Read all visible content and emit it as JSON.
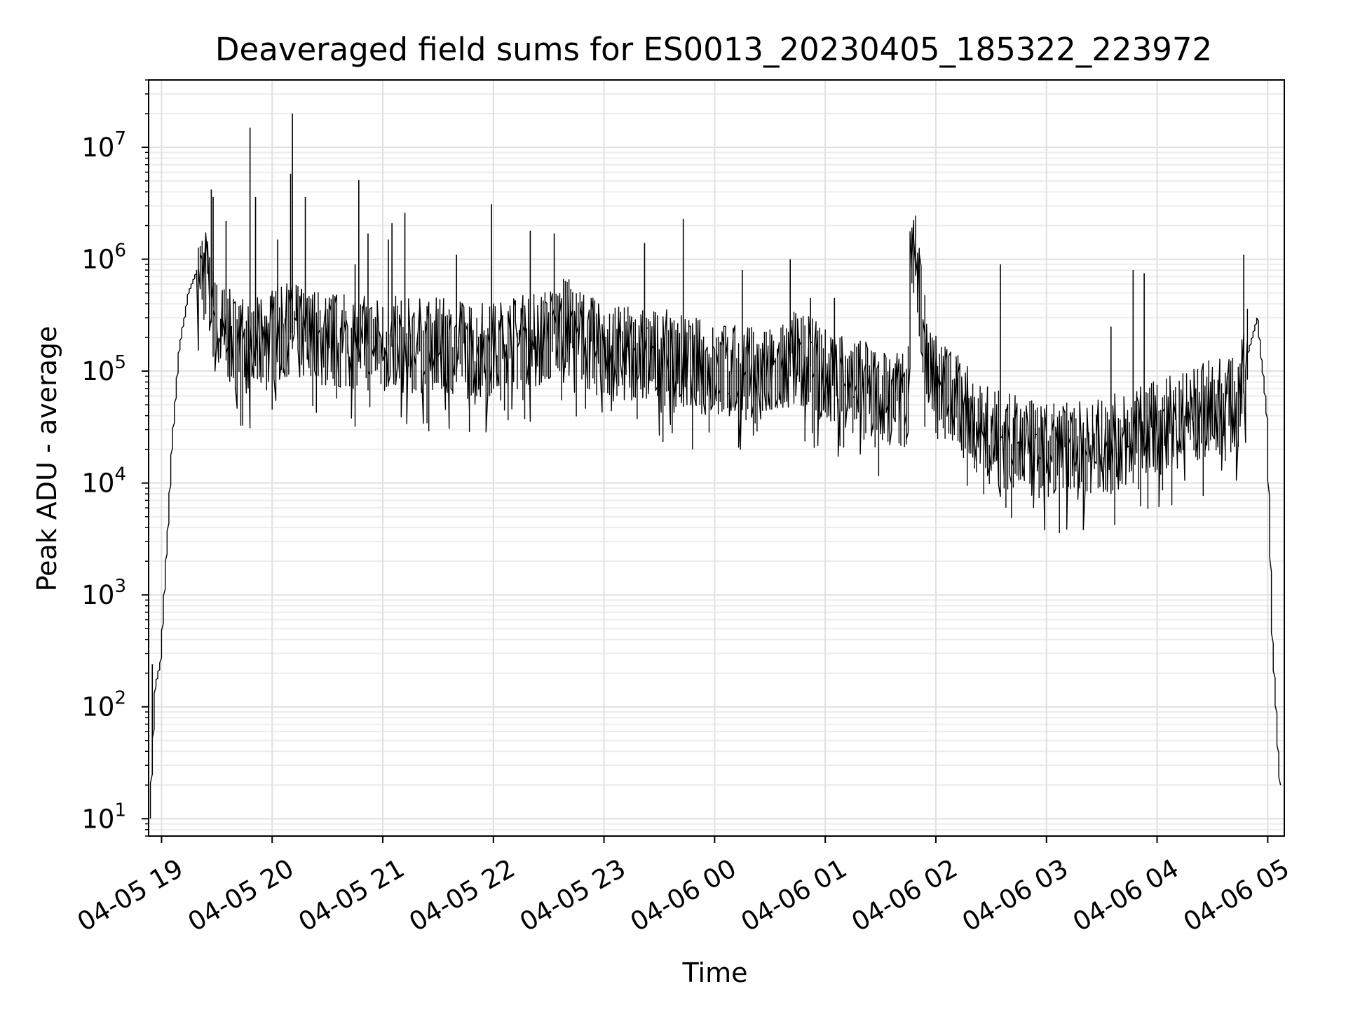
{
  "chart_data": {
    "type": "line",
    "title": "Deaveraged field sums for ES0013_20230405_185322_223972",
    "xlabel": "Time",
    "ylabel": "Peak ADU - average",
    "yscale": "log",
    "ylim": [
      7,
      40000000
    ],
    "xlim": [
      "2023-04-05 18:53",
      "2023-04-06 05:09"
    ],
    "grid": true,
    "grid_minor": true,
    "line_color": "#000000",
    "x_ticks": [
      {
        "value": "2023-04-05 19:00",
        "label": "04-05 19"
      },
      {
        "value": "2023-04-05 20:00",
        "label": "04-05 20"
      },
      {
        "value": "2023-04-05 21:00",
        "label": "04-05 21"
      },
      {
        "value": "2023-04-05 22:00",
        "label": "04-05 22"
      },
      {
        "value": "2023-04-05 23:00",
        "label": "04-05 23"
      },
      {
        "value": "2023-04-06 00:00",
        "label": "04-06 00"
      },
      {
        "value": "2023-04-06 01:00",
        "label": "04-06 01"
      },
      {
        "value": "2023-04-06 02:00",
        "label": "04-06 02"
      },
      {
        "value": "2023-04-06 03:00",
        "label": "04-06 03"
      },
      {
        "value": "2023-04-06 04:00",
        "label": "04-06 04"
      },
      {
        "value": "2023-04-06 05:00",
        "label": "04-06 05"
      }
    ],
    "y_ticks": [
      {
        "value": 10,
        "base": "10",
        "exp": "1"
      },
      {
        "value": 100,
        "base": "10",
        "exp": "2"
      },
      {
        "value": 1000,
        "base": "10",
        "exp": "3"
      },
      {
        "value": 10000,
        "base": "10",
        "exp": "4"
      },
      {
        "value": 100000,
        "base": "10",
        "exp": "5"
      },
      {
        "value": 1000000,
        "base": "10",
        "exp": "6"
      },
      {
        "value": 10000000,
        "base": "10",
        "exp": "7"
      }
    ],
    "series": [
      {
        "x": [
          "2023-04-05 18:54",
          "2023-04-05 18:57",
          "2023-04-05 19:00",
          "2023-04-05 19:03",
          "2023-04-05 19:06",
          "2023-04-05 19:10",
          "2023-04-05 19:15",
          "2023-04-05 19:20",
          "2023-04-05 19:25",
          "2023-04-05 19:30",
          "2023-04-05 19:40",
          "2023-04-05 19:50",
          "2023-04-05 20:00",
          "2023-04-05 20:10",
          "2023-04-05 20:30",
          "2023-04-05 21:00",
          "2023-04-05 21:30",
          "2023-04-05 22:00",
          "2023-04-05 22:30",
          "2023-04-05 22:40",
          "2023-04-05 23:00",
          "2023-04-05 23:30",
          "2023-04-06 00:00",
          "2023-04-06 00:30",
          "2023-04-06 00:45",
          "2023-04-06 01:00",
          "2023-04-06 01:30",
          "2023-04-06 01:45",
          "2023-04-06 01:48",
          "2023-04-06 01:50",
          "2023-04-06 01:55",
          "2023-04-06 02:00",
          "2023-04-06 02:30",
          "2023-04-06 03:00",
          "2023-04-06 03:30",
          "2023-04-06 04:00",
          "2023-04-06 04:30",
          "2023-04-06 04:45",
          "2023-04-06 04:50",
          "2023-04-06 04:55",
          "2023-04-06 05:00",
          "2023-04-06 05:03",
          "2023-04-06 05:05",
          "2023-04-06 05:07"
        ],
        "y": [
          10,
          150,
          250,
          2000,
          20000,
          150000,
          500000,
          800000,
          700000,
          250000,
          180000,
          150000,
          200000,
          220000,
          190000,
          170000,
          160000,
          150000,
          200000,
          250000,
          140000,
          130000,
          100000,
          85000,
          130000,
          90000,
          60000,
          50000,
          2600000,
          800000,
          150000,
          80000,
          25000,
          18000,
          20000,
          30000,
          45000,
          50000,
          150000,
          300000,
          40000,
          400,
          100,
          20
        ]
      }
    ],
    "spikes": [
      {
        "x": "2023-04-05 19:27",
        "y": 4200000
      },
      {
        "x": "2023-04-05 19:28",
        "y": 3600000
      },
      {
        "x": "2023-04-05 19:35",
        "y": 2200000
      },
      {
        "x": "2023-04-05 19:48",
        "y": 15000000
      },
      {
        "x": "2023-04-05 19:51",
        "y": 3600000
      },
      {
        "x": "2023-04-05 20:03",
        "y": 1500000
      },
      {
        "x": "2023-04-05 20:10",
        "y": 5800000
      },
      {
        "x": "2023-04-05 20:11",
        "y": 20000000
      },
      {
        "x": "2023-04-05 20:18",
        "y": 3600000
      },
      {
        "x": "2023-04-05 20:45",
        "y": 900000
      },
      {
        "x": "2023-04-05 20:47",
        "y": 5100000
      },
      {
        "x": "2023-04-05 20:52",
        "y": 1700000
      },
      {
        "x": "2023-04-05 21:03",
        "y": 1500000
      },
      {
        "x": "2023-04-05 21:05",
        "y": 2100000
      },
      {
        "x": "2023-04-05 21:12",
        "y": 2600000
      },
      {
        "x": "2023-04-05 21:40",
        "y": 1100000
      },
      {
        "x": "2023-04-05 21:59",
        "y": 3100000
      },
      {
        "x": "2023-04-05 22:20",
        "y": 1800000
      },
      {
        "x": "2023-04-05 22:33",
        "y": 1700000
      },
      {
        "x": "2023-04-05 23:22",
        "y": 1400000
      },
      {
        "x": "2023-04-05 23:43",
        "y": 2300000
      },
      {
        "x": "2023-04-06 00:15",
        "y": 800000
      },
      {
        "x": "2023-04-06 00:41",
        "y": 1000000
      },
      {
        "x": "2023-04-06 00:52",
        "y": 450000
      },
      {
        "x": "2023-04-06 01:05",
        "y": 450000
      },
      {
        "x": "2023-04-06 02:35",
        "y": 900000
      },
      {
        "x": "2023-04-06 03:35",
        "y": 250000
      },
      {
        "x": "2023-04-06 03:47",
        "y": 800000
      },
      {
        "x": "2023-04-06 03:53",
        "y": 750000
      },
      {
        "x": "2023-04-06 04:47",
        "y": 1100000
      },
      {
        "x": "2023-04-05 18:55",
        "y": 240
      }
    ]
  }
}
